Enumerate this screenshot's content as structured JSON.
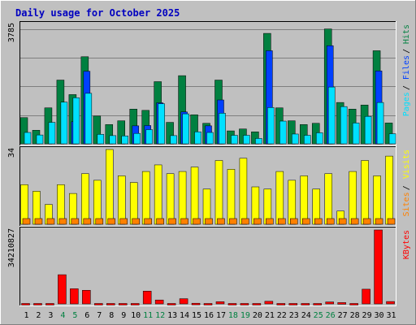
{
  "title": "Daily usage for October 2025",
  "colors": {
    "background": "#c0c0c0",
    "plot_background": "#c0c0c0",
    "title_text": "#0000c0",
    "gridline": "#7f7f7f",
    "hits": "#008040",
    "files": "#0040ff",
    "pages": "#00e0ff",
    "visits": "#ffff00",
    "sites": "#ff8000",
    "kbytes": "#ff0000",
    "weekend_label": "#008040",
    "weekday_label": "#000000"
  },
  "chart_data": [
    {
      "type": "bar",
      "panel": "hits-files-pages",
      "y_axis_max_label": "3785",
      "ylim": [
        0,
        3785
      ],
      "right_axis_labels": [
        {
          "text": "Hits",
          "color_key": "hits"
        },
        {
          "text": "Files",
          "color_key": "files"
        },
        {
          "text": "Pages",
          "color_key": "pages"
        }
      ],
      "categories": [
        "1",
        "2",
        "3",
        "4",
        "5",
        "6",
        "7",
        "8",
        "9",
        "10",
        "11",
        "12",
        "13",
        "14",
        "15",
        "16",
        "17",
        "18",
        "19",
        "20",
        "21",
        "22",
        "23",
        "24",
        "25",
        "26",
        "27",
        "28",
        "29",
        "30",
        "31"
      ],
      "series": [
        {
          "name": "Hits",
          "color_key": "hits",
          "values": [
            830,
            430,
            1140,
            2020,
            1560,
            2760,
            880,
            610,
            730,
            1100,
            1060,
            1970,
            680,
            2160,
            920,
            650,
            2020,
            410,
            470,
            380,
            3500,
            1140,
            730,
            610,
            650,
            3640,
            1310,
            1100,
            1230,
            2950,
            660
          ]
        },
        {
          "name": "Files",
          "color_key": "files",
          "values": [
            0,
            0,
            0,
            0,
            700,
            2300,
            0,
            0,
            0,
            570,
            580,
            1300,
            0,
            1010,
            0,
            570,
            1390,
            0,
            0,
            0,
            2950,
            0,
            0,
            0,
            0,
            3110,
            0,
            0,
            0,
            2310,
            0
          ]
        },
        {
          "name": "Pages",
          "color_key": "pages",
          "values": [
            360,
            280,
            680,
            1320,
            1460,
            1600,
            300,
            260,
            250,
            330,
            450,
            1270,
            260,
            950,
            380,
            360,
            970,
            270,
            270,
            170,
            1150,
            720,
            310,
            270,
            350,
            1800,
            1180,
            660,
            870,
            1310,
            320
          ]
        }
      ]
    },
    {
      "type": "bar",
      "panel": "visits-sites",
      "y_axis_max_label": "34",
      "ylim": [
        0,
        34
      ],
      "right_axis_labels": [
        {
          "text": "Visits",
          "color_key": "visits"
        },
        {
          "text": "Sites",
          "color_key": "sites"
        }
      ],
      "categories": [
        "1",
        "2",
        "3",
        "4",
        "5",
        "6",
        "7",
        "8",
        "9",
        "10",
        "11",
        "12",
        "13",
        "14",
        "15",
        "16",
        "17",
        "18",
        "19",
        "20",
        "21",
        "22",
        "23",
        "24",
        "25",
        "26",
        "27",
        "28",
        "29",
        "30",
        "31"
      ],
      "series": [
        {
          "name": "Visits",
          "color_key": "visits",
          "values": [
            18,
            15,
            9,
            18,
            14,
            23,
            20,
            34,
            22,
            19,
            24,
            27,
            23,
            24,
            26,
            16,
            29,
            25,
            30,
            17,
            16,
            24,
            20,
            22,
            16,
            23,
            6,
            24,
            29,
            22,
            31
          ]
        },
        {
          "name": "Sites",
          "color_key": "sites",
          "values": [
            2,
            2,
            2,
            2,
            2,
            2,
            2,
            2,
            2,
            2,
            2,
            2,
            2,
            2,
            2,
            2,
            2,
            2,
            2,
            2,
            2,
            2,
            2,
            2,
            2,
            2,
            2,
            2,
            2,
            2,
            2
          ]
        }
      ]
    },
    {
      "type": "bar",
      "panel": "kbytes",
      "y_axis_max_label": "34210827",
      "ylim": [
        0,
        34210827
      ],
      "right_axis_labels": [
        {
          "text": "KBytes",
          "color_key": "kbytes"
        }
      ],
      "categories": [
        "1",
        "2",
        "3",
        "4",
        "5",
        "6",
        "7",
        "8",
        "9",
        "10",
        "11",
        "12",
        "13",
        "14",
        "15",
        "16",
        "17",
        "18",
        "19",
        "20",
        "21",
        "22",
        "23",
        "24",
        "25",
        "26",
        "27",
        "28",
        "29",
        "30",
        "31"
      ],
      "series": [
        {
          "name": "KBytes",
          "color_key": "kbytes",
          "values": [
            200000,
            200000,
            200000,
            13500000,
            7000000,
            6300000,
            200000,
            200000,
            200000,
            200000,
            5900000,
            1800000,
            200000,
            2400000,
            300000,
            200000,
            1000000,
            200000,
            200000,
            200000,
            1200000,
            200000,
            200000,
            200000,
            200000,
            900000,
            600000,
            200000,
            6800000,
            34210827,
            1100000
          ]
        }
      ]
    }
  ],
  "x_axis": {
    "labels": [
      "1",
      "2",
      "3",
      "4",
      "5",
      "6",
      "7",
      "8",
      "9",
      "10",
      "11",
      "12",
      "13",
      "14",
      "15",
      "16",
      "17",
      "18",
      "19",
      "20",
      "21",
      "22",
      "23",
      "24",
      "25",
      "26",
      "27",
      "28",
      "29",
      "30",
      "31"
    ],
    "weekend_days": [
      "4",
      "5",
      "11",
      "12",
      "18",
      "19",
      "25",
      "26"
    ]
  }
}
